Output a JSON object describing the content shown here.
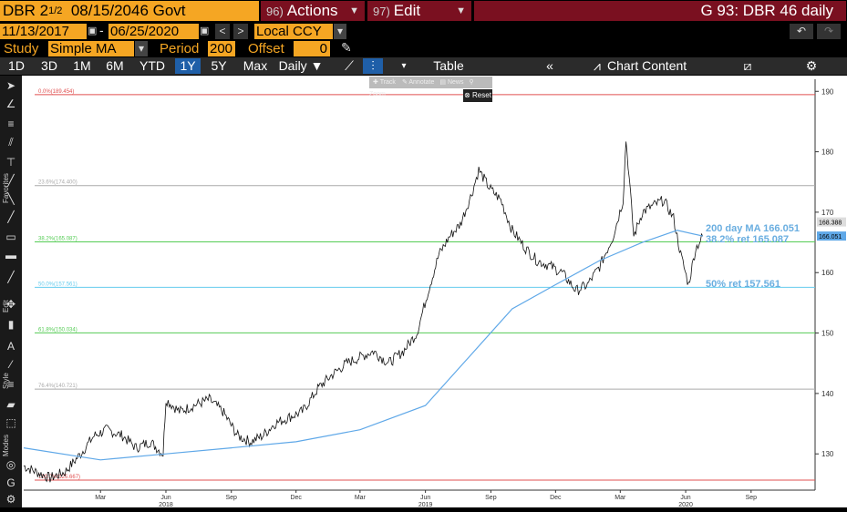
{
  "header": {
    "ticker_prefix": "DBR 2",
    "ticker_frac": "1/2",
    "ticker_rest": "08/15/2046 Govt",
    "actions_num": "96)",
    "actions_label": "Actions",
    "edit_num": "97)",
    "edit_label": "Edit",
    "title": "G 93: DBR 46 daily"
  },
  "options": {
    "start_date": "11/13/2017",
    "end_date": "06/25/2020",
    "currency": "Local CCY",
    "study_label": "Study",
    "study_value": "Simple MA",
    "period_label": "Period",
    "period_value": "200",
    "offset_label": "Offset",
    "offset_value": "0"
  },
  "toolbar": {
    "periods": [
      "1D",
      "3D",
      "1M",
      "6M",
      "YTD",
      "1Y",
      "5Y",
      "Max"
    ],
    "selected_period": "1Y",
    "frequency": "Daily",
    "table_label": "Table",
    "chart_content_label": "Chart Content"
  },
  "popup": {
    "track": "Track",
    "annotate": "Annotate",
    "news": "News",
    "zoom": "Zoom",
    "reset": "Reset"
  },
  "sidebar": {
    "labels": [
      "Favorites",
      "Edit",
      "Style",
      "Modes"
    ]
  },
  "colors": {
    "header_orange": "#f5a623",
    "menu_red": "#7a1020",
    "selected_blue": "#1f5fa8",
    "ma_line": "#5fa8e8",
    "fib_0": "#e05050",
    "fib_236": "#aaaaaa",
    "fib_382": "#55cc55",
    "fib_50": "#66ccee",
    "fib_618": "#55cc55",
    "fib_764": "#aaaaaa",
    "fib_100": "#e05050",
    "annotation_blue": "#6aaee0"
  },
  "chart_data": {
    "type": "line",
    "ylim": [
      124,
      192
    ],
    "xlim": [
      "2017-11-13",
      "2020-11-30"
    ],
    "yticks": [
      130,
      140,
      150,
      160,
      170,
      180,
      190
    ],
    "xtick_months": [
      {
        "date": "2018-03-01",
        "label": "Mar"
      },
      {
        "date": "2018-06-01",
        "label": "Jun"
      },
      {
        "date": "2018-09-01",
        "label": "Sep"
      },
      {
        "date": "2018-12-01",
        "label": "Dec"
      },
      {
        "date": "2019-03-01",
        "label": "Mar"
      },
      {
        "date": "2019-06-01",
        "label": "Jun"
      },
      {
        "date": "2019-09-01",
        "label": "Sep"
      },
      {
        "date": "2019-12-01",
        "label": "Dec"
      },
      {
        "date": "2020-03-01",
        "label": "Mar"
      },
      {
        "date": "2020-06-01",
        "label": "Jun"
      },
      {
        "date": "2020-09-01",
        "label": "Sep"
      }
    ],
    "year_labels": [
      {
        "date": "2018-06-01",
        "label": "2018"
      },
      {
        "date": "2019-06-01",
        "label": "2019"
      },
      {
        "date": "2020-06-01",
        "label": "2020"
      }
    ],
    "fib_levels": [
      {
        "label": "0.0%(189.454)",
        "value": 189.454,
        "color_key": "fib_0"
      },
      {
        "label": "23.6%(174.400)",
        "value": 174.4,
        "color_key": "fib_236"
      },
      {
        "label": "38.2%(165.087)",
        "value": 165.087,
        "color_key": "fib_382"
      },
      {
        "label": "50.0%(157.561)",
        "value": 157.561,
        "color_key": "fib_50"
      },
      {
        "label": "61.8%(150.034)",
        "value": 150.034,
        "color_key": "fib_618"
      },
      {
        "label": "76.4%(140.721)",
        "value": 140.721,
        "color_key": "fib_764"
      },
      {
        "label": "100.0%(125.667)",
        "value": 125.667,
        "color_key": "fib_100"
      }
    ],
    "price_series": {
      "dates": [
        "2017-11-13",
        "2017-12-01",
        "2017-12-20",
        "2018-01-10",
        "2018-02-01",
        "2018-02-20",
        "2018-03-10",
        "2018-04-01",
        "2018-04-20",
        "2018-05-10",
        "2018-05-28",
        "2018-06-01",
        "2018-06-20",
        "2018-07-10",
        "2018-08-01",
        "2018-08-20",
        "2018-09-10",
        "2018-09-28",
        "2018-10-15",
        "2018-11-01",
        "2018-11-20",
        "2018-12-10",
        "2019-01-02",
        "2019-01-20",
        "2019-02-10",
        "2019-03-01",
        "2019-03-20",
        "2019-04-10",
        "2019-05-01",
        "2019-05-20",
        "2019-06-05",
        "2019-06-20",
        "2019-07-05",
        "2019-07-20",
        "2019-08-05",
        "2019-08-15",
        "2019-08-30",
        "2019-09-15",
        "2019-10-01",
        "2019-10-20",
        "2019-11-05",
        "2019-11-25",
        "2019-12-10",
        "2019-12-30",
        "2020-01-15",
        "2020-02-01",
        "2020-02-20",
        "2020-03-05",
        "2020-03-09",
        "2020-03-12",
        "2020-03-20",
        "2020-04-01",
        "2020-04-15",
        "2020-05-01",
        "2020-05-15",
        "2020-05-25",
        "2020-06-05",
        "2020-06-15",
        "2020-06-25"
      ],
      "values": [
        128,
        127,
        126,
        127,
        130,
        133,
        134,
        133,
        131,
        132,
        130,
        139,
        137,
        138,
        139,
        137,
        133,
        132,
        133,
        135,
        136,
        137,
        141,
        143,
        145,
        146,
        147,
        145,
        147,
        150,
        157,
        163,
        166,
        168,
        173,
        177,
        174,
        172,
        167,
        164,
        162,
        161,
        160,
        157,
        158,
        161,
        166,
        172,
        182,
        178,
        166,
        170,
        171,
        172,
        169,
        163,
        158,
        164,
        166
      ]
    },
    "ma_series": {
      "name": "200 day MA",
      "dates": [
        "2017-11-13",
        "2018-03-01",
        "2018-06-01",
        "2018-09-01",
        "2018-12-01",
        "2019-03-01",
        "2019-06-01",
        "2019-08-01",
        "2019-10-01",
        "2019-12-01",
        "2020-02-01",
        "2020-04-01",
        "2020-05-20",
        "2020-06-25"
      ],
      "values": [
        131,
        129,
        130,
        131,
        132,
        134,
        138,
        146,
        154,
        158,
        162,
        165,
        167,
        166.051
      ]
    },
    "right_labels": [
      {
        "text": "168.388",
        "value": 168.388,
        "bg": "#dddddd"
      },
      {
        "text": "166.051",
        "value": 166.051,
        "bg": "#5fa8e8"
      }
    ],
    "annotations": [
      {
        "text": "200 day MA 166.051",
        "value": 167.4
      },
      {
        "text": "38.2% ret 165.087",
        "value": 165.6
      },
      {
        "text": "50% ret 157.561",
        "value": 158.2
      }
    ]
  }
}
